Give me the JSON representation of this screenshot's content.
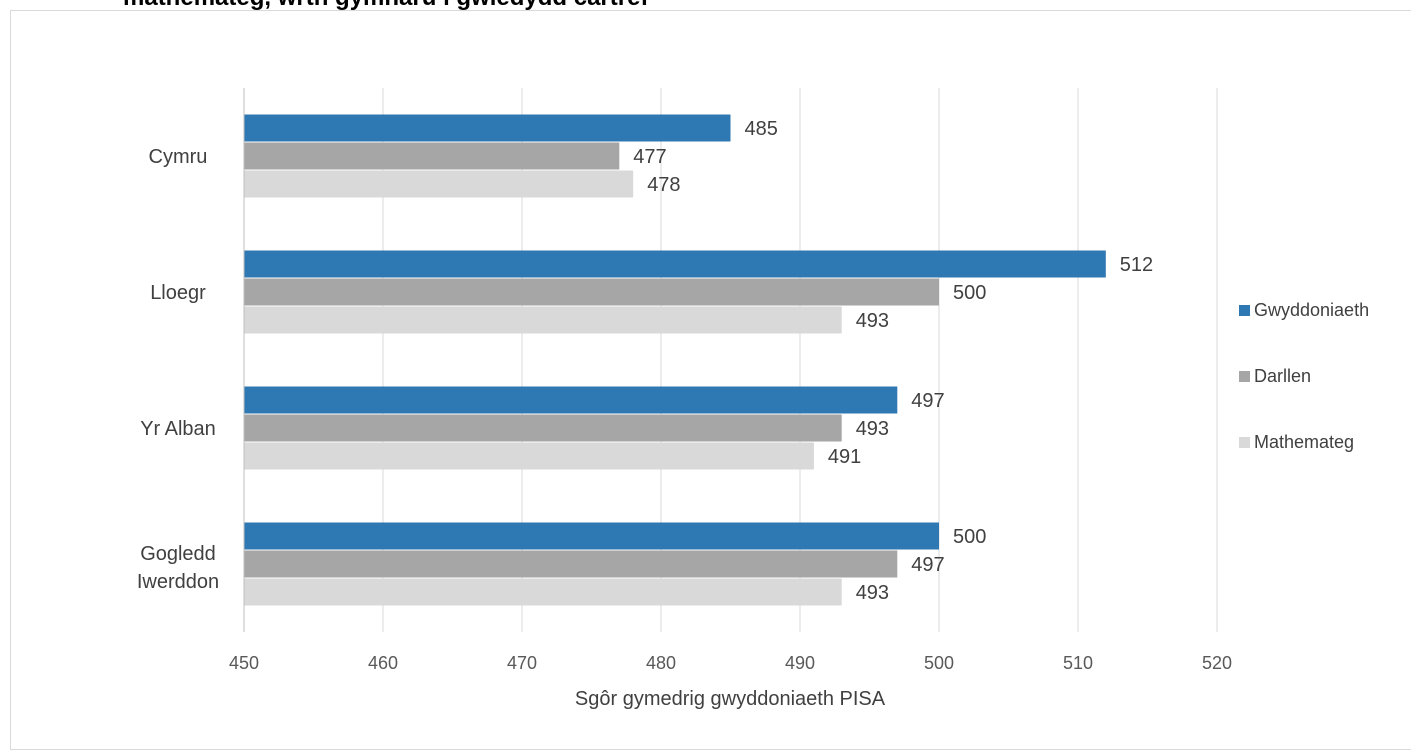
{
  "chart_data": {
    "type": "bar",
    "orientation": "horizontal",
    "title": "mathemateg, wrth gymharu i gwledydd cartref",
    "xlabel": "Sgôr gymedrig gwyddoniaeth PISA",
    "ylabel": "",
    "xlim": [
      450,
      520
    ],
    "xticks": [
      450,
      460,
      470,
      480,
      490,
      500,
      510,
      520
    ],
    "grid": true,
    "legend_position": "right",
    "categories": [
      "Cymru",
      "Lloegr",
      "Yr Alban",
      "Gogledd Iwerddon"
    ],
    "series": [
      {
        "name": "Gwyddoniaeth",
        "color": "#2e78b4",
        "values": [
          485,
          512,
          497,
          500
        ]
      },
      {
        "name": "Darllen",
        "color": "#a6a6a6",
        "values": [
          477,
          500,
          493,
          497
        ]
      },
      {
        "name": "Mathemateg",
        "color": "#d9d9d9",
        "values": [
          478,
          493,
          491,
          493
        ]
      }
    ]
  }
}
